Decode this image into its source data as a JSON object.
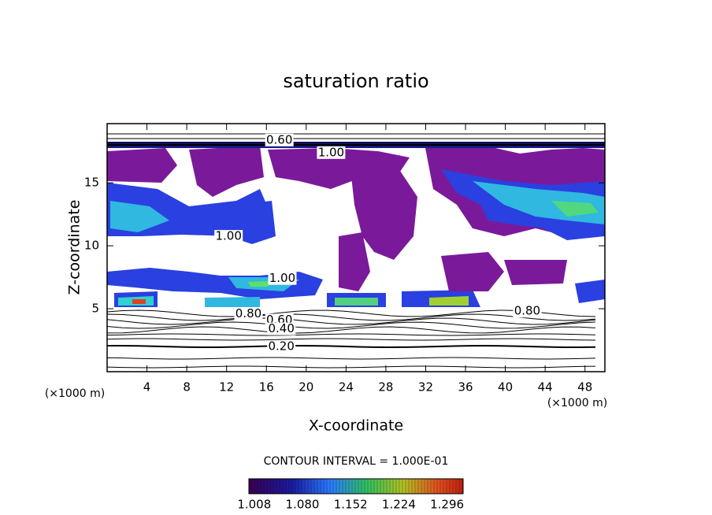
{
  "chart_data": {
    "type": "contour",
    "title": "saturation ratio",
    "x_label": "X-coordinate",
    "y_label": "Z-coordinate",
    "x_unit": "(×1000 m)",
    "z_unit": "(×1000 m)",
    "xlim": [
      0,
      50
    ],
    "ylim": [
      0,
      19.7
    ],
    "xticks": [
      4,
      8,
      12,
      16,
      20,
      24,
      28,
      32,
      36,
      40,
      44,
      48
    ],
    "yticks": [
      5,
      10,
      15
    ],
    "contour_interval": "CONTOUR INTERVAL = 1.000E-01",
    "contour_labels": [
      {
        "text": "0.60",
        "x": 17.3,
        "y": 18.4
      },
      {
        "text": "1.00",
        "x": 22.5,
        "y": 17.4
      },
      {
        "text": "1.00",
        "x": 12.2,
        "y": 10.75
      },
      {
        "text": "1.00",
        "x": 17.6,
        "y": 7.4
      },
      {
        "text": "0.80",
        "x": 14.2,
        "y": 4.6
      },
      {
        "text": "0.60",
        "x": 17.3,
        "y": 4.1
      },
      {
        "text": "0.40",
        "x": 17.5,
        "y": 3.4
      },
      {
        "text": "0.20",
        "x": 17.5,
        "y": 2.0
      },
      {
        "text": "0.80",
        "x": 42.2,
        "y": 4.8
      }
    ],
    "colorbar": {
      "clim": [
        1.0,
        1.32
      ],
      "ticks": [
        1.008,
        {
          "value": 1.08,
          "label": "1.080"
        },
        1.152,
        1.224,
        1.296
      ]
    }
  }
}
